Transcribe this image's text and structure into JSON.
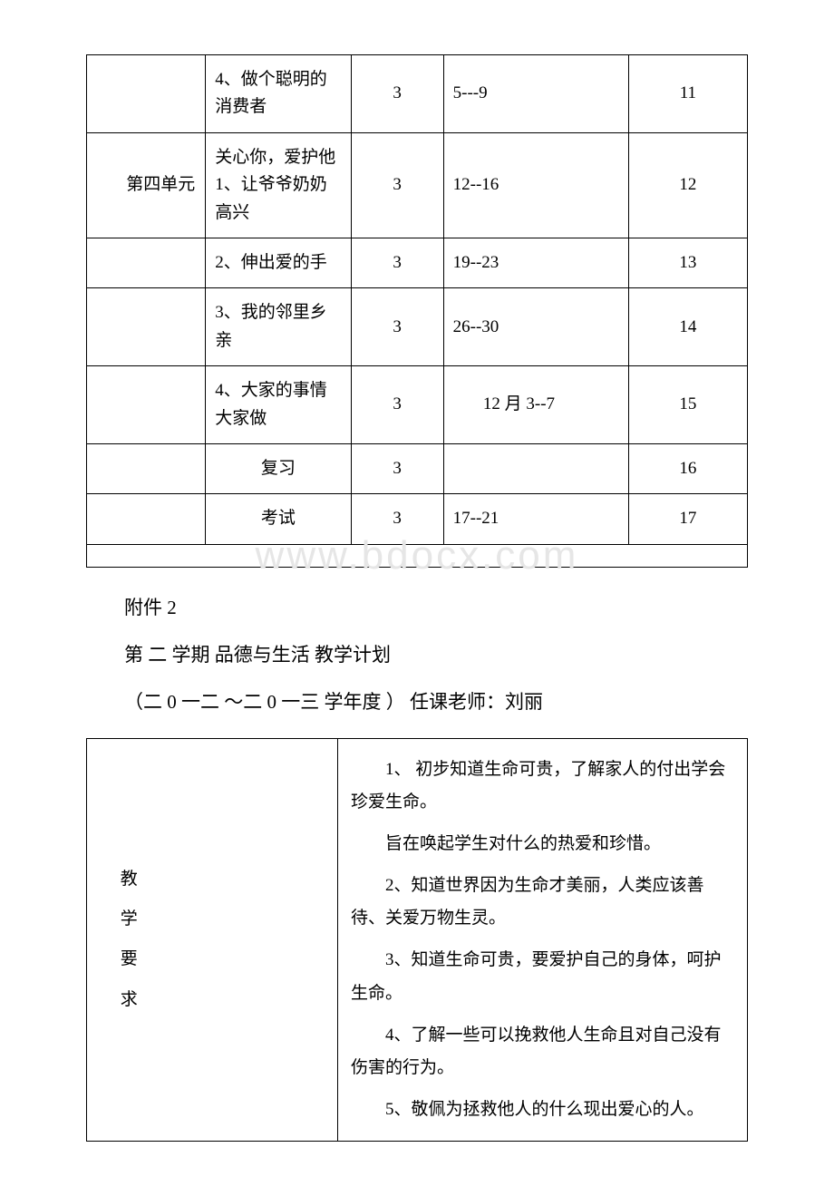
{
  "schedule": {
    "rows": [
      {
        "unit": "",
        "topic": "4、做个聪明的消费者",
        "hours": "3",
        "dates": "5---9",
        "week": "11",
        "topic_class": "topic-inner",
        "dates_class": "date-inner"
      },
      {
        "unit": "       第四单元",
        "topic": "关心你，爱护他\n1、让爷爷奶奶高兴",
        "hours": "3",
        "dates": "12--16",
        "week": "12",
        "topic_class": "topic-inner",
        "dates_class": "date-inner"
      },
      {
        "unit": "",
        "topic": "2、伸出爱的手",
        "hours": "3",
        "dates": "19--23",
        "week": "13",
        "topic_class": "topic-inner",
        "dates_class": "date-inner"
      },
      {
        "unit": "",
        "topic": "3、我的邻里乡亲",
        "hours": "3",
        "dates": "26--30",
        "week": "14",
        "topic_class": "topic-inner",
        "dates_class": "date-inner"
      },
      {
        "unit": "",
        "topic": "4、大家的事情大家做",
        "hours": "3",
        "dates": "       12 月 3--7",
        "week": "15",
        "topic_class": "topic-inner",
        "dates_class": ""
      },
      {
        "unit": "",
        "topic": "复习",
        "hours": "3",
        "dates": "",
        "week": "16",
        "topic_class": "topic-center",
        "dates_class": "date-inner"
      },
      {
        "unit": "",
        "topic": "考试",
        "hours": "3",
        "dates": "17--21",
        "week": "17",
        "topic_class": "topic-center",
        "dates_class": "date-inner"
      }
    ]
  },
  "watermark": "www.bdocx.com",
  "body": {
    "line1": "附件 2",
    "line2": "第 二 学期 品德与生活 教学计划",
    "line3": "（二 0 一二 ～二 0 一三 学年度 ） 任课老师：刘丽"
  },
  "req": {
    "left_chars": [
      "教",
      "学",
      "要",
      "求"
    ],
    "paras": [
      "1、 初步知道生命可贵，了解家人的付出学会珍爱生命。",
      "旨在唤起学生对什么的热爱和珍惜。",
      "2、知道世界因为生命才美丽，人类应该善待、关爱万物生灵。",
      "3、知道生命可贵，要爱护自己的身体，呵护生命。",
      "4、了解一些可以挽救他人生命且对自己没有伤害的行为。",
      "5、敬佩为拯救他人的什么现出爱心的人。"
    ]
  }
}
